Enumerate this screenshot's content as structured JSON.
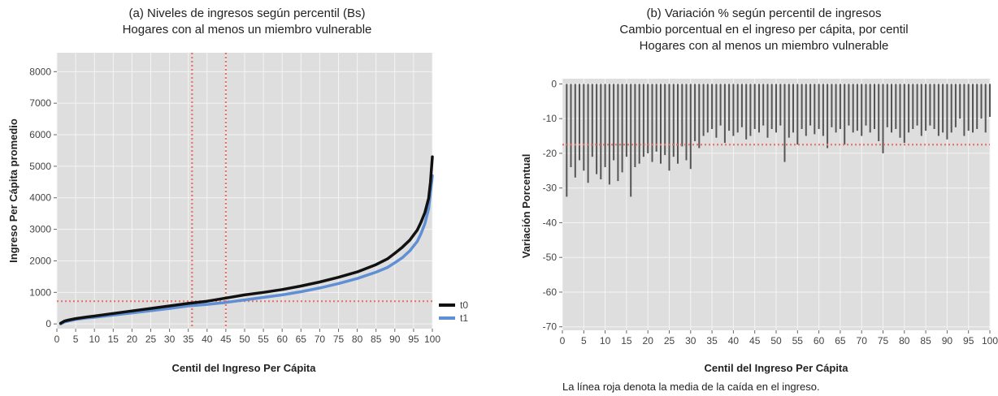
{
  "chart_data": [
    {
      "type": "line",
      "title": "(a) Niveles de ingresos según percentil (Bs)",
      "subtitle": "Hogares con al menos un miembro vulnerable",
      "xlabel": "Centil del Ingreso Per Cápita",
      "ylabel": "Ingreso Per Cápita promedio",
      "xlim": [
        0,
        100
      ],
      "ylim": [
        -150,
        8600
      ],
      "x_ticks": [
        "0",
        "5",
        "10",
        "15",
        "20",
        "25",
        "30",
        "35",
        "40",
        "45",
        "50",
        "55",
        "60",
        "65",
        "70",
        "75",
        "80",
        "85",
        "90",
        "95",
        "100"
      ],
      "y_ticks": [
        "0",
        "1000",
        "2000",
        "3000",
        "4000",
        "5000",
        "6000",
        "7000",
        "8000"
      ],
      "grid": true,
      "legend_position": "right",
      "reference_lines": {
        "vertical": [
          36,
          45
        ],
        "horizontal": [
          720
        ]
      },
      "series": [
        {
          "name": "t0",
          "color": "#111111",
          "x": [
            1,
            2,
            3,
            5,
            8,
            10,
            15,
            20,
            25,
            30,
            35,
            40,
            45,
            50,
            55,
            60,
            65,
            70,
            75,
            80,
            85,
            88,
            90,
            92,
            94,
            96,
            97,
            98,
            99,
            99.5,
            100
          ],
          "y": [
            20,
            90,
            120,
            170,
            220,
            250,
            330,
            410,
            490,
            570,
            650,
            720,
            820,
            920,
            1000,
            1090,
            1200,
            1330,
            1480,
            1650,
            1880,
            2060,
            2240,
            2430,
            2660,
            2980,
            3230,
            3530,
            3980,
            4500,
            5300
          ]
        },
        {
          "name": "t1",
          "color": "#5f8fd4",
          "x": [
            1,
            2,
            3,
            5,
            8,
            10,
            15,
            20,
            25,
            30,
            35,
            40,
            45,
            50,
            55,
            60,
            65,
            70,
            75,
            80,
            85,
            88,
            90,
            92,
            94,
            96,
            97,
            98,
            99,
            99.5,
            100
          ],
          "y": [
            0,
            60,
            90,
            140,
            190,
            210,
            280,
            350,
            420,
            490,
            570,
            620,
            680,
            760,
            840,
            920,
            1020,
            1140,
            1280,
            1440,
            1640,
            1790,
            1940,
            2100,
            2320,
            2620,
            2870,
            3180,
            3650,
            4150,
            4700
          ]
        }
      ]
    },
    {
      "type": "bar",
      "title": "(b) Variación % según percentil de ingresos",
      "subtitle": "Cambio porcentual en el ingreso per cápita, por centil",
      "subtitle2": "Hogares con al menos un miembro vulnerable",
      "xlabel": "Centil del Ingreso Per Cápita",
      "ylabel": "Variación Porcentual",
      "xlim": [
        0,
        100
      ],
      "ylim": [
        -71,
        1.5
      ],
      "x_ticks": [
        "0",
        "5",
        "10",
        "15",
        "20",
        "25",
        "30",
        "35",
        "40",
        "45",
        "50",
        "55",
        "60",
        "65",
        "70",
        "75",
        "80",
        "85",
        "90",
        "95",
        "100"
      ],
      "y_ticks": [
        "0",
        "-10",
        "-20",
        "-30",
        "-40",
        "-50",
        "-60",
        "-70"
      ],
      "grid": true,
      "reference_lines": {
        "horizontal": [
          -17.5
        ]
      },
      "bar_color": "#555555",
      "x": [
        1,
        2,
        3,
        4,
        5,
        6,
        7,
        8,
        9,
        10,
        11,
        12,
        13,
        14,
        15,
        16,
        17,
        18,
        19,
        20,
        21,
        22,
        23,
        24,
        25,
        26,
        27,
        28,
        29,
        30,
        31,
        32,
        33,
        34,
        35,
        36,
        37,
        38,
        39,
        40,
        41,
        42,
        43,
        44,
        45,
        46,
        47,
        48,
        49,
        50,
        51,
        52,
        53,
        54,
        55,
        56,
        57,
        58,
        59,
        60,
        61,
        62,
        63,
        64,
        65,
        66,
        67,
        68,
        69,
        70,
        71,
        72,
        73,
        74,
        75,
        76,
        77,
        78,
        79,
        80,
        81,
        82,
        83,
        84,
        85,
        86,
        87,
        88,
        89,
        90,
        91,
        92,
        93,
        94,
        95,
        96,
        97,
        98,
        99,
        100
      ],
      "values": [
        -32.5,
        -24,
        -27,
        -22,
        -25,
        -28.5,
        -21,
        -26,
        -27.5,
        -24,
        -29,
        -22,
        -28,
        -25.5,
        -21,
        -32.5,
        -24,
        -23,
        -21,
        -20,
        -22.5,
        -19.5,
        -23,
        -20.5,
        -25,
        -21,
        -23,
        -18,
        -22,
        -24.5,
        -16.5,
        -18.5,
        -15,
        -14,
        -13,
        -15.5,
        -12,
        -17,
        -13.5,
        -15,
        -14,
        -12.5,
        -16,
        -15,
        -13,
        -14,
        -12,
        -15.5,
        -13,
        -14,
        -12,
        -22.5,
        -15.5,
        -14,
        -17.5,
        -13,
        -15,
        -12,
        -14.5,
        -13,
        -15,
        -18.5,
        -12.5,
        -14,
        -13,
        -17.5,
        -12,
        -14,
        -13.5,
        -15,
        -12,
        -14,
        -13,
        -16.5,
        -20,
        -12.5,
        -14,
        -13,
        -15.5,
        -17,
        -14,
        -13,
        -12,
        -15,
        -13.5,
        -12,
        -13,
        -15,
        -14,
        -16,
        -14,
        -12.5,
        -10,
        -15,
        -13.5,
        -14,
        -13,
        -10,
        -14,
        -9.5
      ],
      "note": "La línea roja denota la media de la caída en el ingreso."
    }
  ],
  "style": {
    "panel_bg": "#dedede",
    "grid_color": "#f4f4f4",
    "ref_line_color": "#e8736b"
  }
}
